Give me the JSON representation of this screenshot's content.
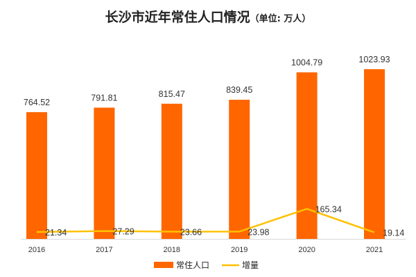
{
  "chart_data": {
    "type": "bar",
    "title": "长沙市近年常住人口情况",
    "unit": "（单位: 万人）",
    "categories": [
      "2016",
      "2017",
      "2018",
      "2019",
      "2020",
      "2021"
    ],
    "series": [
      {
        "name": "常住人口",
        "type": "bar",
        "color": "#FF6600",
        "values": [
          764.52,
          791.81,
          815.47,
          839.45,
          1004.79,
          1023.93
        ]
      },
      {
        "name": "增量",
        "type": "line",
        "color": "#FFC000",
        "values": [
          21.34,
          27.29,
          23.66,
          23.98,
          165.34,
          19.14
        ]
      }
    ],
    "ylim": [
      0,
      1100
    ],
    "grid": false,
    "legend": "bottom"
  }
}
